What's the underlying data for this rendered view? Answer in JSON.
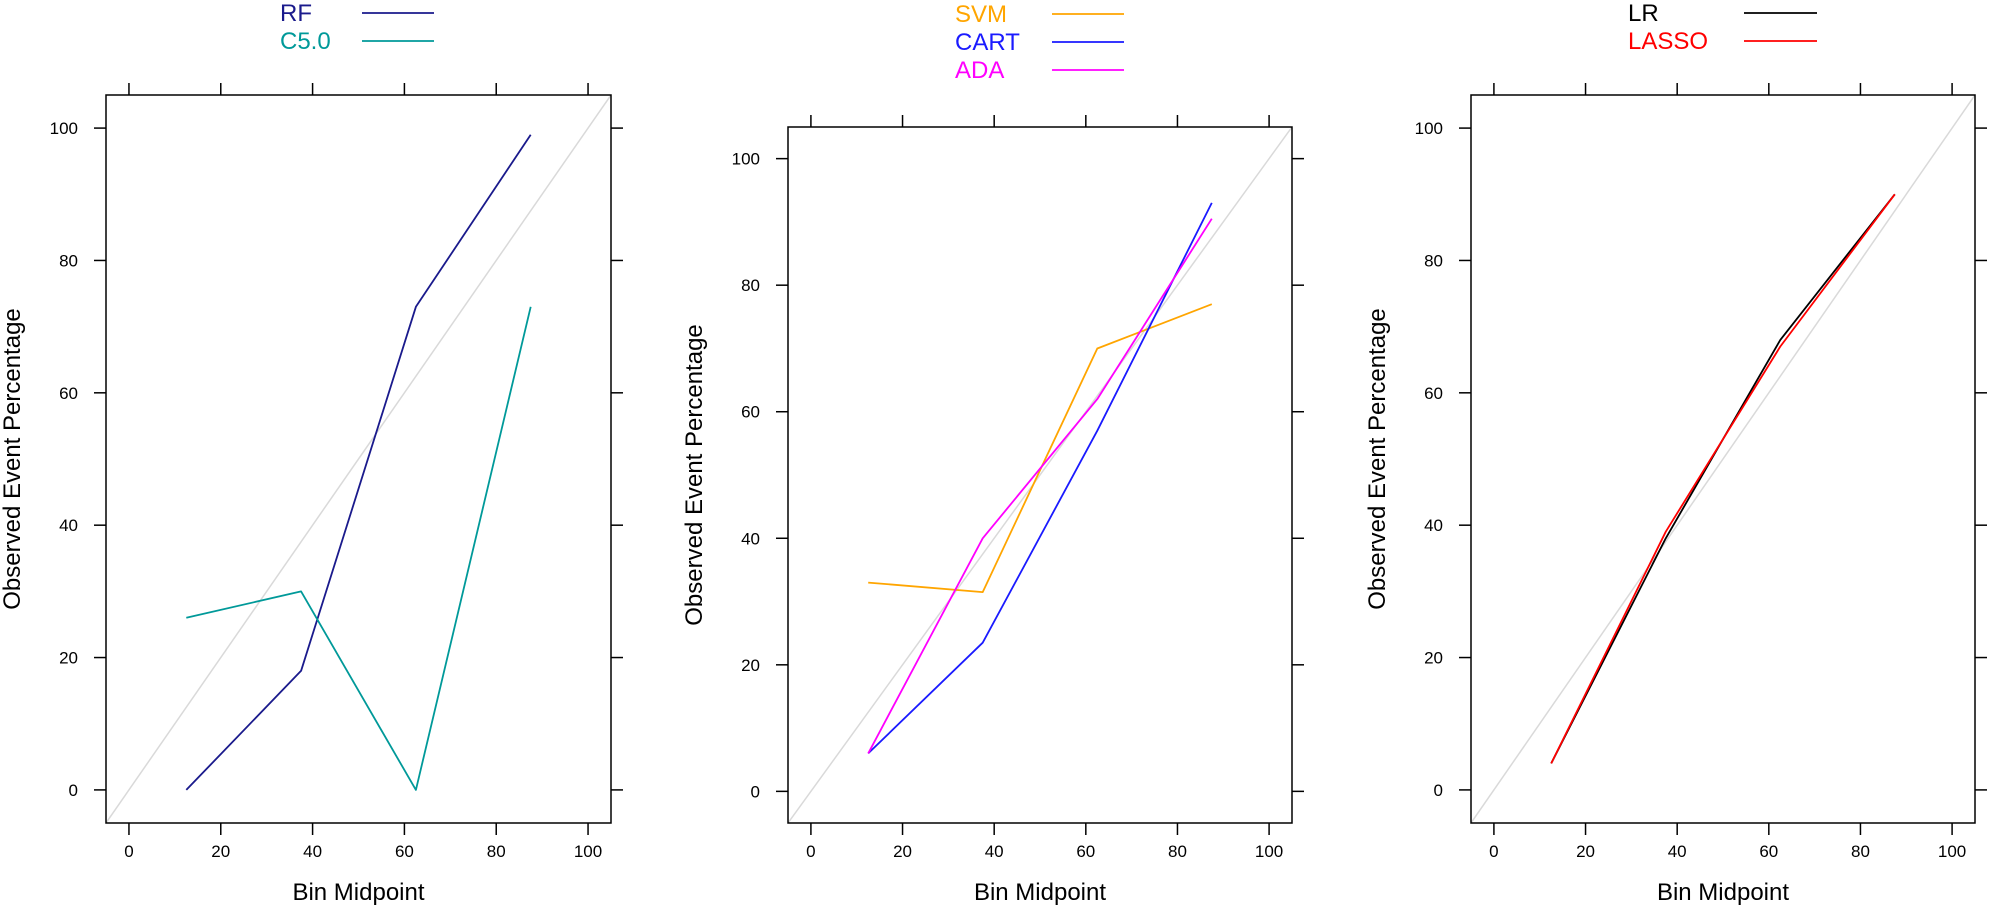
{
  "chart_data": [
    {
      "type": "line",
      "xlabel": "Bin Midpoint",
      "ylabel": "Observed Event Percentage",
      "xlim": [
        -5,
        105
      ],
      "ylim": [
        -5,
        105
      ],
      "xticks": [
        0,
        20,
        40,
        60,
        80,
        100
      ],
      "yticks": [
        0,
        20,
        40,
        60,
        80,
        100
      ],
      "reference_line": "diagonal",
      "legend_position": "top",
      "series": [
        {
          "name": "RF",
          "color": "#1a1a8c",
          "x": [
            12.5,
            37.5,
            62.5,
            87.5
          ],
          "y": [
            0,
            18,
            73,
            99
          ]
        },
        {
          "name": "C5.0",
          "color": "#009999",
          "x": [
            12.5,
            37.5,
            62.5,
            87.5
          ],
          "y": [
            26,
            30,
            0,
            73
          ]
        }
      ]
    },
    {
      "type": "line",
      "xlabel": "Bin Midpoint",
      "ylabel": "Observed Event Percentage",
      "xlim": [
        -5,
        105
      ],
      "ylim": [
        -5,
        105
      ],
      "xticks": [
        0,
        20,
        40,
        60,
        80,
        100
      ],
      "yticks": [
        0,
        20,
        40,
        60,
        80,
        100
      ],
      "reference_line": "diagonal",
      "legend_position": "top",
      "series": [
        {
          "name": "SVM",
          "color": "#ffa500",
          "x": [
            12.5,
            37.5,
            62.5,
            87.5
          ],
          "y": [
            33,
            31.5,
            70,
            77
          ]
        },
        {
          "name": "CART",
          "color": "#1a1aff",
          "x": [
            12.5,
            37.5,
            62.5,
            87.5
          ],
          "y": [
            6,
            23.5,
            57,
            93
          ]
        },
        {
          "name": "ADA",
          "color": "#ff00ff",
          "x": [
            12.5,
            37.5,
            62.5,
            87.5
          ],
          "y": [
            6,
            40,
            62,
            90.5
          ]
        }
      ]
    },
    {
      "type": "line",
      "xlabel": "Bin Midpoint",
      "ylabel": "Observed Event Percentage",
      "xlim": [
        -5,
        105
      ],
      "ylim": [
        -5,
        105
      ],
      "xticks": [
        0,
        20,
        40,
        60,
        80,
        100
      ],
      "yticks": [
        0,
        20,
        40,
        60,
        80,
        100
      ],
      "reference_line": "diagonal",
      "legend_position": "top",
      "series": [
        {
          "name": "LR",
          "color": "#000000",
          "x": [
            12.5,
            37.5,
            62.5,
            87.5
          ],
          "y": [
            4,
            38,
            68,
            90
          ]
        },
        {
          "name": "LASSO",
          "color": "#ff0000",
          "x": [
            12.5,
            37.5,
            62.5,
            87.5
          ],
          "y": [
            4,
            39,
            67,
            90
          ]
        }
      ]
    }
  ]
}
